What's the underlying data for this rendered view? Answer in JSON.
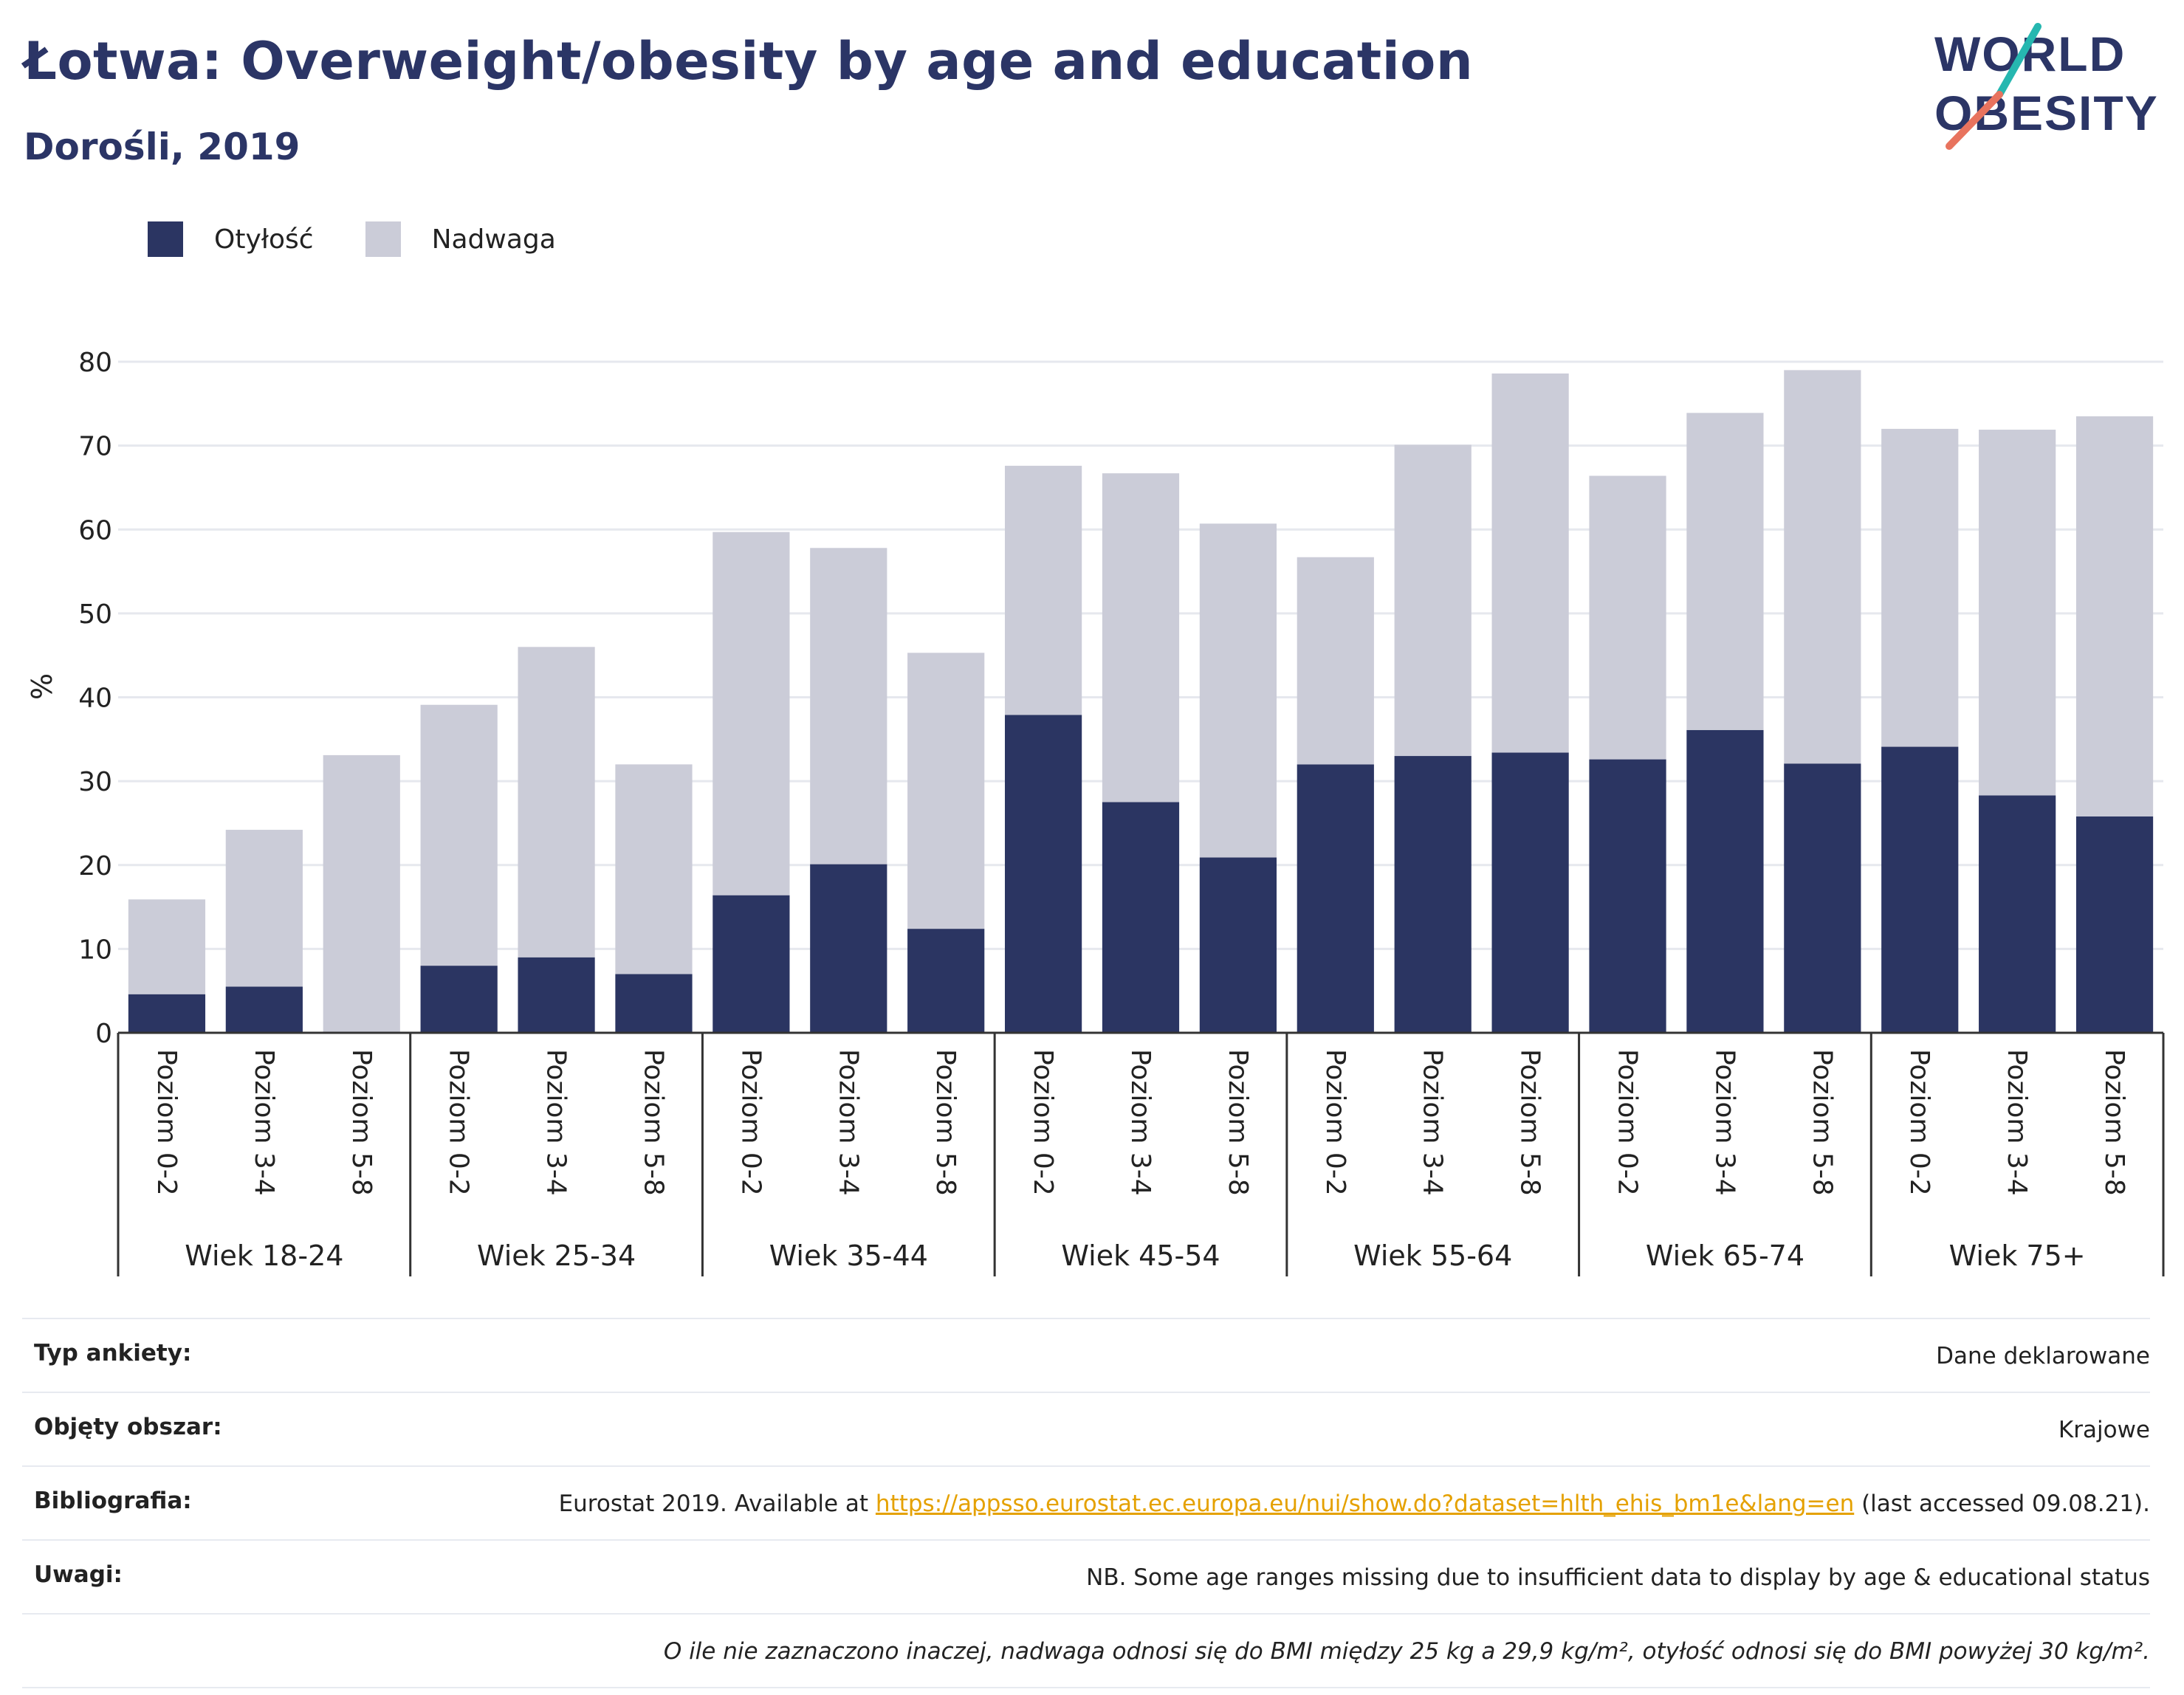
{
  "header": {
    "title": "Łotwa: Overweight/obesity by age and education",
    "subtitle": "Dorośli, 2019"
  },
  "logo": {
    "line1": "WORLD",
    "line2": "OBESITY"
  },
  "colors": {
    "obesity": "#2b3562",
    "overweight": "#cbccd8",
    "title": "#2b3566",
    "logo_teal": "#26b7b0",
    "logo_coral": "#e8735e"
  },
  "legend": {
    "obesity_label": "Otyłość",
    "overweight_label": "Nadwaga"
  },
  "chart_data": {
    "type": "bar",
    "stacked": true,
    "ylabel": "%",
    "ylim": [
      0,
      80
    ],
    "yticks": [
      0,
      10,
      20,
      30,
      40,
      50,
      60,
      70,
      80
    ],
    "grid": true,
    "legend_position": "top-left",
    "groups": [
      "Wiek 18-24",
      "Wiek 25-34",
      "Wiek 35-44",
      "Wiek 45-54",
      "Wiek 55-64",
      "Wiek 65-74",
      "Wiek 75+"
    ],
    "subcategories": [
      "Poziom 0-2",
      "Poziom 3-4",
      "Poziom 5-8"
    ],
    "series": [
      {
        "name": "Otyłość",
        "values": [
          4.6,
          5.5,
          0,
          8.0,
          9.0,
          7.0,
          16.4,
          20.1,
          12.4,
          37.9,
          27.5,
          20.9,
          32.0,
          33.0,
          33.4,
          32.6,
          36.1,
          32.1,
          34.1,
          28.3,
          25.8
        ]
      },
      {
        "name": "Nadwaga",
        "values": [
          11.3,
          18.7,
          33.1,
          31.1,
          37.0,
          25.0,
          43.3,
          37.7,
          32.9,
          29.7,
          39.2,
          39.8,
          24.7,
          37.1,
          45.2,
          33.8,
          37.8,
          46.9,
          37.9,
          43.6,
          47.7
        ]
      }
    ]
  },
  "info": {
    "survey_type_label": "Typ ankiety:",
    "survey_type_value": "Dane deklarowane",
    "coverage_label": "Objęty obszar:",
    "coverage_value": "Krajowe",
    "bibliography_label": "Bibliografia:",
    "bibliography_prefix": "Eurostat 2019. Available at",
    "bibliography_link": "https://appsso.eurostat.ec.europa.eu/nui/show.do?dataset=hlth_ehis_bm1e&lang=en",
    "bibliography_suffix": "(last accessed 09.08.21).",
    "notes_label": "Uwagi:",
    "notes_value": "NB. Some age ranges missing due to insufficient data to display by age & educational status",
    "footnote": "O ile nie zaznaczono inaczej, nadwaga odnosi się do BMI między 25 kg a 29,9 kg/m², otyłość odnosi się do BMI powyżej 30 kg/m²."
  }
}
